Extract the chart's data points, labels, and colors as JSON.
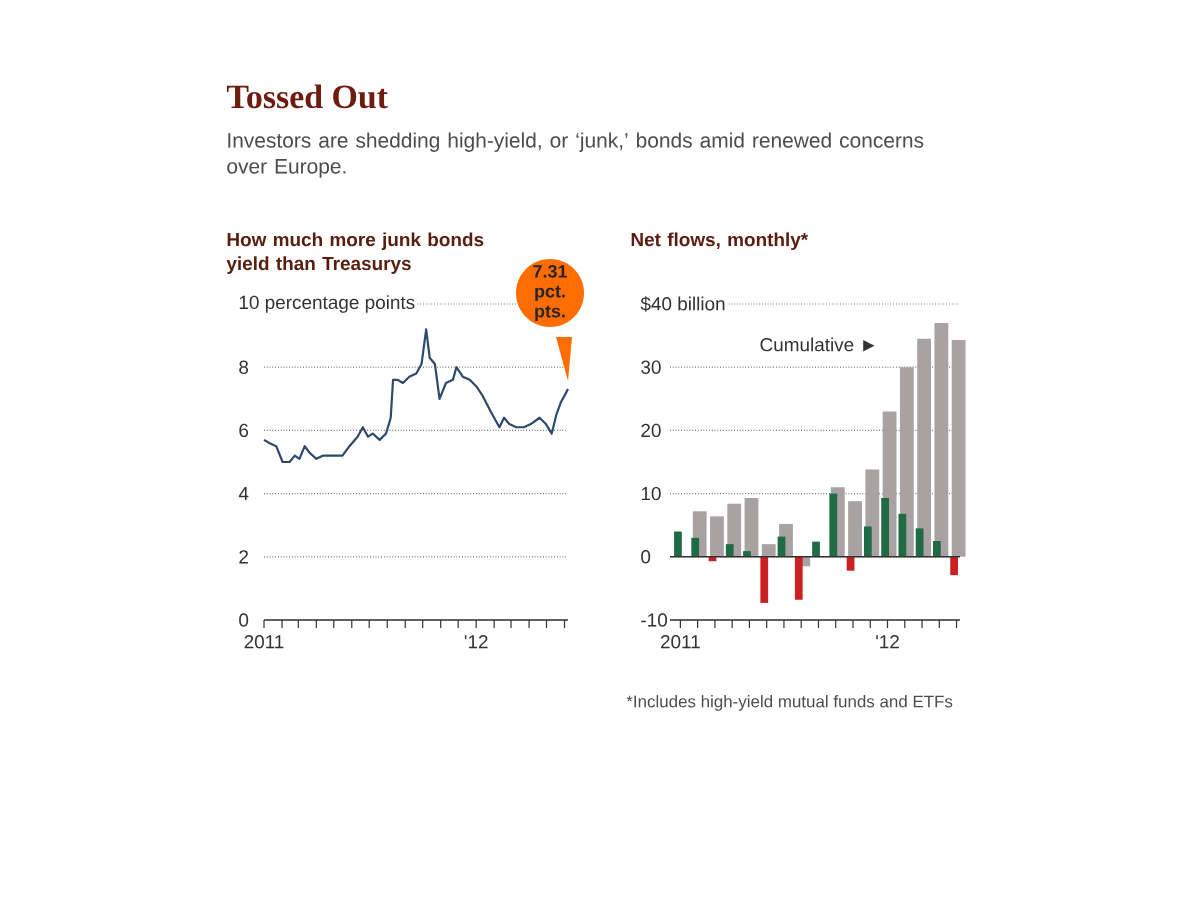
{
  "chart_data": [
    {
      "type": "line",
      "title": "Tossed Out",
      "subtitle": "Investors are shedding high-yield, or ‘junk,’ bonds amid renewed concerns over Europe.",
      "ylabel": "How much more junk bonds yield than Treasurys",
      "x": [
        "2011-01-01",
        "2011-01-10",
        "2011-01-22",
        "2011-02-02",
        "2011-02-14",
        "2011-02-23",
        "2011-03-03",
        "2011-03-12",
        "2011-03-20",
        "2011-04-01",
        "2011-04-12",
        "2011-04-29",
        "2011-05-16",
        "2011-05-28",
        "2011-06-11",
        "2011-06-20",
        "2011-06-29",
        "2011-07-07",
        "2011-07-19",
        "2011-07-30",
        "2011-08-07",
        "2011-08-11",
        "2011-08-19",
        "2011-08-28",
        "2011-09-08",
        "2011-09-20",
        "2011-09-29",
        "2011-10-07",
        "2011-10-13",
        "2011-10-22",
        "2011-10-30",
        "2011-11-10",
        "2011-11-22",
        "2011-11-28",
        "2011-12-09",
        "2011-12-21",
        "2012-01-01",
        "2012-01-12",
        "2012-01-26",
        "2012-02-04",
        "2012-02-10",
        "2012-02-18",
        "2012-02-27",
        "2012-03-10",
        "2012-03-23",
        "2012-04-04",
        "2012-04-19",
        "2012-04-30",
        "2012-05-10",
        "2012-05-18",
        "2012-05-26",
        "2012-06-01",
        "2012-06-07"
      ],
      "values": [
        5.7,
        5.6,
        5.5,
        5.0,
        5.0,
        5.2,
        5.1,
        5.5,
        5.3,
        5.1,
        5.2,
        5.2,
        5.2,
        5.5,
        5.8,
        6.1,
        5.8,
        5.9,
        5.7,
        5.9,
        6.4,
        7.6,
        7.6,
        7.5,
        7.7,
        7.8,
        8.1,
        9.2,
        8.3,
        8.1,
        7.0,
        7.5,
        7.6,
        8.0,
        7.7,
        7.6,
        7.4,
        7.1,
        6.6,
        6.3,
        6.1,
        6.4,
        6.2,
        6.1,
        6.1,
        6.2,
        6.4,
        6.2,
        5.9,
        6.5,
        6.9,
        7.1,
        7.31
      ],
      "color": "#2b4a6e",
      "xlim": [
        "2011-01-01",
        "2012-06-07"
      ],
      "xticks": [
        {
          "value": "2011-01-01",
          "label": "2011"
        },
        {
          "value": "2011-02-01",
          "label": null
        },
        {
          "value": "2011-03-01",
          "label": null
        },
        {
          "value": "2011-04-01",
          "label": null
        },
        {
          "value": "2011-05-01",
          "label": null
        },
        {
          "value": "2011-06-01",
          "label": null
        },
        {
          "value": "2011-07-01",
          "label": null
        },
        {
          "value": "2011-08-01",
          "label": null
        },
        {
          "value": "2011-09-01",
          "label": null
        },
        {
          "value": "2011-10-01",
          "label": null
        },
        {
          "value": "2011-11-01",
          "label": null
        },
        {
          "value": "2011-12-01",
          "label": null
        },
        {
          "value": "2012-01-01",
          "label": "'12"
        },
        {
          "value": "2012-02-01",
          "label": null
        },
        {
          "value": "2012-03-01",
          "label": null
        },
        {
          "value": "2012-04-01",
          "label": null
        },
        {
          "value": "2012-05-01",
          "label": null
        },
        {
          "value": "2012-06-01",
          "label": null
        }
      ],
      "ylim": [
        0,
        10
      ],
      "yticks": [
        0,
        2,
        4,
        6,
        8,
        {
          "value": 10,
          "label": "10 percentage points"
        }
      ],
      "grid": "y",
      "annotations": [
        {
          "text": "7.31 pct. pts.",
          "x": "2012-06-07",
          "y": 7.31
        }
      ]
    },
    {
      "type": "bar",
      "ylabel": "Net flows, monthly*",
      "categories": [
        "2011",
        null,
        null,
        null,
        null,
        null,
        null,
        null,
        null,
        null,
        null,
        null,
        "'12",
        null,
        null,
        null,
        null
      ],
      "series": [
        {
          "name": "Cumulative ►",
          "color": "#a9a2a2",
          "values": [
            null,
            7.2,
            6.4,
            8.4,
            9.3,
            2.0,
            5.2,
            -1.5,
            null,
            11.0,
            8.8,
            13.8,
            23.0,
            30.0,
            34.5,
            37.0,
            34.3
          ]
        },
        {
          "colors": [
            "#1e6b44",
            "#1e6b44",
            "#cc2020",
            "#1e6b44",
            "#1e6b44",
            "#cc2020",
            "#1e6b44",
            "#cc2020",
            "#1e6b44",
            "#1e6b44",
            "#cc2020",
            "#1e6b44",
            "#1e6b44",
            "#1e6b44",
            "#1e6b44",
            "#1e6b44",
            "#cc2020"
          ],
          "values": [
            4.0,
            3.0,
            -0.7,
            2.0,
            0.9,
            -7.3,
            3.2,
            -6.8,
            2.4,
            10.0,
            -2.2,
            4.8,
            9.3,
            6.8,
            4.5,
            2.5,
            -2.9
          ]
        }
      ],
      "ylim": [
        -10,
        40
      ],
      "yticks": [
        -10,
        0,
        10,
        20,
        30,
        {
          "value": 40,
          "label": "$40 billion"
        }
      ],
      "grid": "y",
      "annotations": [
        "*Includes high-yield mutual funds and ETFs"
      ]
    }
  ]
}
